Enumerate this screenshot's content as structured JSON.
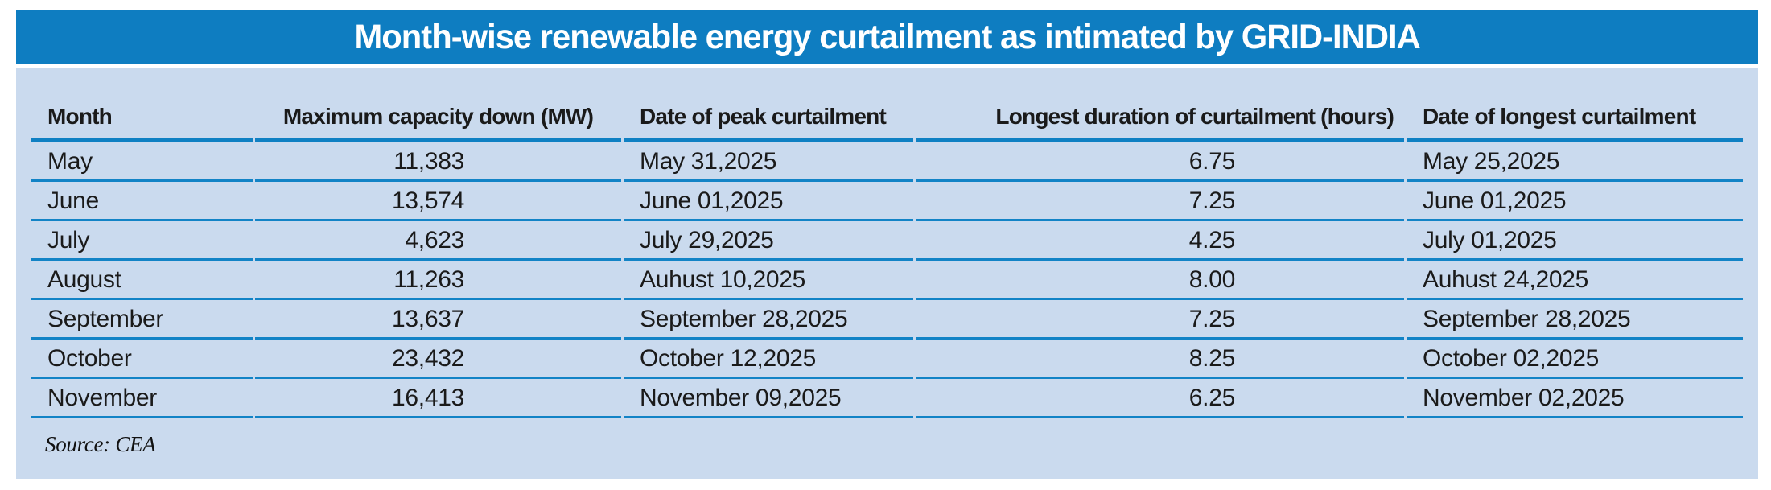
{
  "header": {
    "title": "Month-wise renewable energy curtailment as intimated by GRID-INDIA"
  },
  "footer": {
    "source": "Source: CEA"
  },
  "colors": {
    "title_bar": "#0e7dc1",
    "title_text": "#ffffff",
    "panel_bg": "#cadaee",
    "header_rule": "#0f80c3",
    "row_rule": "#1283c6",
    "body_text": "#1a1a1a"
  },
  "chart_data": {
    "type": "table",
    "title": "Month-wise renewable energy curtailment as intimated by GRID-INDIA",
    "columns": [
      "Month",
      "Maximum capacity down (MW)",
      "Date of peak curtailment",
      "Longest duration of curtailment (hours)",
      "Date of longest curtailment"
    ],
    "rows": [
      [
        "May",
        "11,383",
        "May 31,2025",
        "6.75",
        "May 25,2025"
      ],
      [
        "June",
        "13,574",
        "June 01,2025",
        "7.25",
        "June 01,2025"
      ],
      [
        "July",
        "4,623",
        "July 29,2025",
        "4.25",
        "July 01,2025"
      ],
      [
        "August",
        "11,263",
        "Auhust 10,2025",
        "8.00",
        "Auhust 24,2025"
      ],
      [
        "September",
        "13,637",
        "September 28,2025",
        "7.25",
        "September 28,2025"
      ],
      [
        "October",
        "23,432",
        "October 12,2025",
        "8.25",
        "October 02,2025"
      ],
      [
        "November",
        "16,413",
        "November 09,2025",
        "6.25",
        "November 02,2025"
      ]
    ],
    "source_note": "Source: CEA",
    "layout": {
      "grid": "horizontal-rules-only",
      "numeric_columns_alignment": "right",
      "text_columns_alignment": "left"
    }
  }
}
